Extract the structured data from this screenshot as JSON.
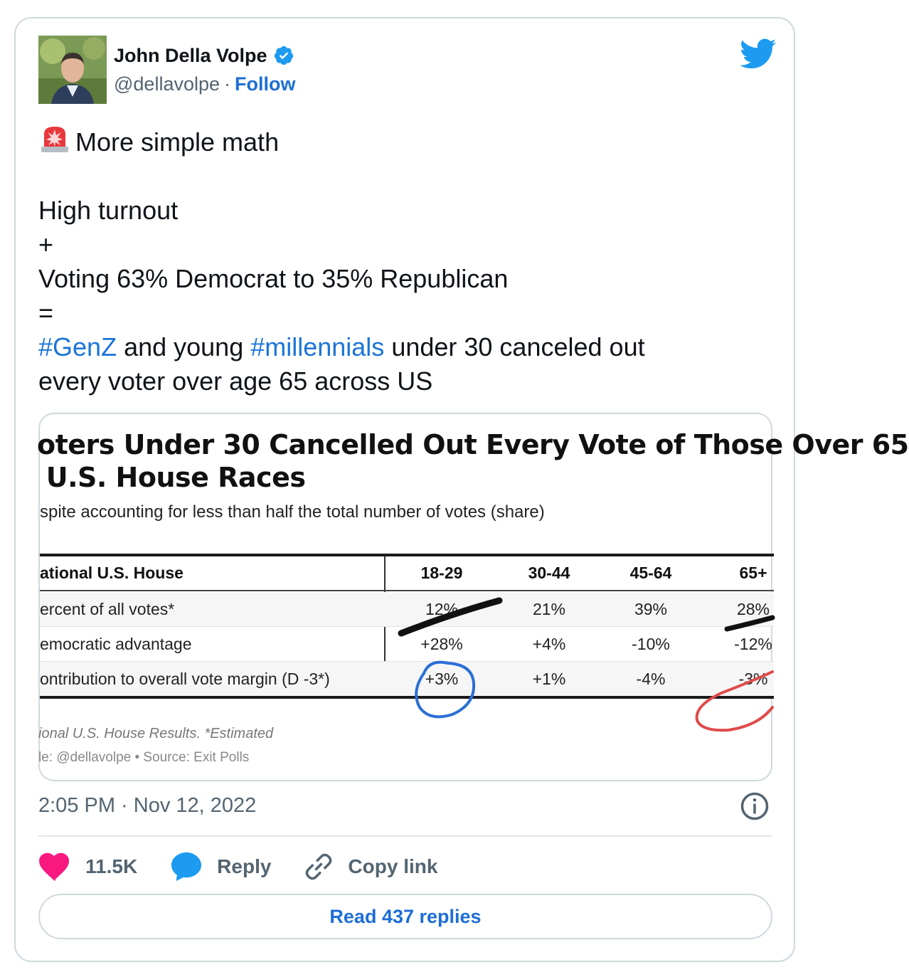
{
  "author": {
    "name": "John Della Volpe",
    "handle": "@dellavolpe",
    "separator": "·",
    "follow_label": "Follow",
    "verified": true
  },
  "brand_icon": "twitter-bird-icon",
  "tweet": {
    "emoji": "siren-icon",
    "line1": "More simple math",
    "line2": "High turnout",
    "line3": "+",
    "line4": "Voting 63% Democrat to 35% Republican",
    "line5": "=",
    "hashtag1": "#GenZ",
    "text_a": " and young ",
    "hashtag2": "#millennials",
    "text_b": " under 30 canceled out",
    "line7": "every voter over age 65 across US"
  },
  "media": {
    "title_line1": "oters Under 30 Cancelled Out Every Vote of Those Over 65",
    "title_line2": " U.S. House Races",
    "subtitle": "spite accounting for less than half the total number of votes (share)",
    "table": {
      "header": {
        "label": "ational U.S. House",
        "cols": [
          "18-29",
          "30-44",
          "45-64",
          "65+"
        ]
      },
      "rows": [
        {
          "label": "ercent of all votes*",
          "values": [
            "12%",
            "21%",
            "39%",
            "28%"
          ]
        },
        {
          "label": "emocratic advantage",
          "values": [
            "+28%",
            "+4%",
            "-10%",
            "-12%"
          ]
        },
        {
          "label": "ontribution to overall vote margin (D -3*)",
          "values": [
            "+3%",
            "+1%",
            "-4%",
            "-3%"
          ]
        }
      ]
    },
    "note1": "ional U.S. House Results. *Estimated",
    "note2": "le: @dellavolpe • Source: Exit Polls"
  },
  "timestamp": "2:05 PM · Nov 12, 2022",
  "actions": {
    "likes": "11.5K",
    "reply_label": "Reply",
    "copy_label": "Copy link"
  },
  "read_replies_label": "Read 437 replies",
  "colors": {
    "accent": "#1d9bf0",
    "link": "#1d6ed6",
    "like": "#f91880",
    "muted": "#536471"
  }
}
